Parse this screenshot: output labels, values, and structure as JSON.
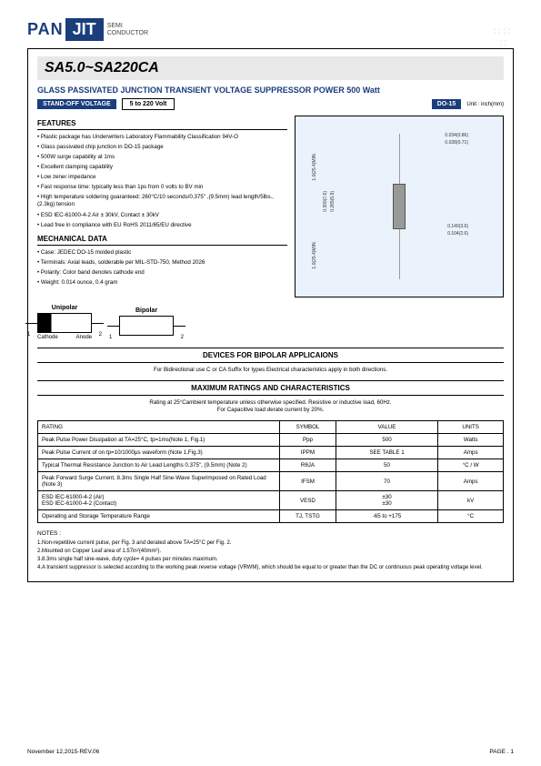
{
  "logo": {
    "pan": "PAN",
    "jit": "JIT",
    "sub1": "SEMI",
    "sub2": "CONDUCTOR"
  },
  "title": "SA5.0~SA220CA",
  "subtitle": "GLASS PASSIVATED JUNCTION TRANSIENT VOLTAGE SUPPRESSOR  POWER  500 Watt",
  "standoff_label": "STAND-OFF VOLTAGE",
  "standoff_range": "5  to  220 Volt",
  "package_label": "DO-15",
  "unit_label": "Unit : inch(mm)",
  "features_hdr": "FEATURES",
  "features": [
    "Plastic package has Underwriters Laboratory Flammability Classification 94V-O",
    "Glass passivated chip junction in DO-15 package",
    "500W surge capability at 1ms",
    "Excellent clamping capability",
    "Low zener impedance",
    "Fast response time: typically less than 1ps from 0 volts to BV min",
    "High temperature soldering guaranteed: 260°C/10 seconds/0.375\" ,(9.5mm) lead length/5lbs., (2.3kg) tension",
    "ESD IEC-61000-4-2 Air ± 30kV, Contact ± 30kV",
    "Lead free in compliance with EU RoHS 2011/65/EU directive"
  ],
  "mechdata_hdr": "MECHANICAL DATA",
  "mechdata": [
    "Case: JEDEC DO-15 molded plastic",
    "Terminals: Axial leads, solderable per MIL-STD-750, Method 2026",
    "Polarity: Color band denotes cathode end",
    "Weight: 0.014 ounce, 0.4 gram"
  ],
  "dims": {
    "d1": "0.034(0.86)",
    "d2": "0.028(0.71)",
    "d3": "1.0(25.4)MIN.",
    "d4": "0.300(7.6)",
    "d5": "0.265(5.9)",
    "d6": "0.140(3.6)",
    "d7": "0.104(2.6)",
    "d8": "1.0(25.4)MIN."
  },
  "polarity": {
    "unipolar": "Unipolar",
    "bipolar": "Bipolar",
    "cathode": "Cathode",
    "anode": "Anode",
    "p1": "1",
    "p2": "2"
  },
  "devices_hdr": "DEVICES  FOR  BIPOLAR  APPLICAIONS",
  "devices_note": "For Bidirectional use C or CA Suffix for types  Electrical characteristics apply in both directions.",
  "max_hdr": "MAXIMUM  RATINGS  AND  CHARACTERISTICS",
  "max_note1": "Rating at 25°Cambient temperature unless otherwise specified. Resistive or inductive load, 60Hz.",
  "max_note2": "For Capacitive load derate current by 20%.",
  "table": {
    "head": [
      "RATING",
      "SYMBOL",
      "VALUE",
      "UNITS"
    ],
    "rows": [
      [
        "Peak Pulse Power Dissipation at TA=25°C, tp=1ms(Note 1, Fig.1)",
        "Ppp",
        "500",
        "Watts"
      ],
      [
        "Peak Pulse Current of on tp=10/1000μs waveform (Note 1,Fig.3)",
        "IPPM",
        "SEE  TABLE  1",
        "Amps"
      ],
      [
        "Typical Thermal Resistance Junction to Air Lead Lengths 0.375\", (9.5mm) (Note 2)",
        "RθJA",
        "50",
        "°C / W"
      ],
      [
        "Peak Forward Surge Current, 8.3ms Single Half Sine-Wave Superimposed on Rated Load (Note 3)",
        "IFSM",
        "70",
        "Amps"
      ],
      [
        "ESD IEC-61000-4-2 (Air)\nESD IEC-61000-4-2 (Contact)",
        "VESD",
        "±30\n±30",
        "kV"
      ],
      [
        "Operating and Storage Temperature Range",
        "TJ, TSTG",
        "-65  to  +175",
        "°C"
      ]
    ]
  },
  "notes_hdr": "NOTES :",
  "notes": [
    "1.Non-repetitive current pulse, per Fig. 3 and derated above TA=25°C per Fig. 2.",
    "2.Mounted on Copper Leaf area of 1.57in²(40mm²).",
    "3.8.3ms single half sine-wave, duty cycle= 4 pulses per minutes maximum.",
    "4.A transient suppressor is selected according to the working peak reverse voltage (VRWM), which should be equal to or greater than the DC or continuous peak operating voltage level."
  ],
  "footer": {
    "date": "November 12,2015-REV.06",
    "page": "PAGE .  1"
  }
}
